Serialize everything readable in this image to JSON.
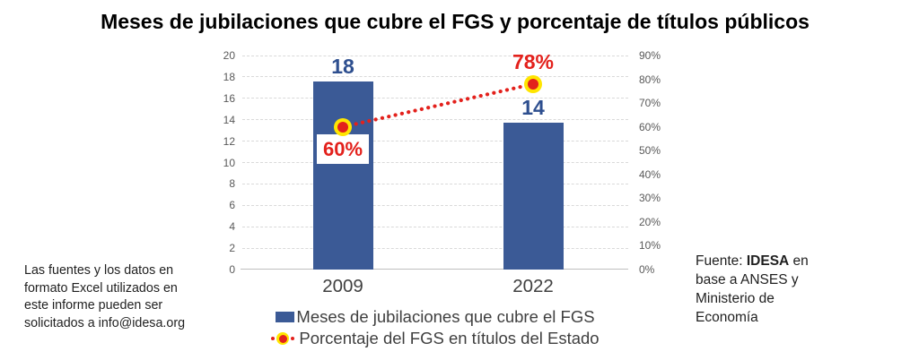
{
  "chart_data": {
    "type": "bar",
    "title": "Meses de jubilaciones que cubre el FGS y porcentaje de títulos públicos",
    "categories": [
      "2009",
      "2022"
    ],
    "series": [
      {
        "name": "Meses de jubilaciones que cubre el FGS",
        "type": "bar",
        "axis": "left",
        "values": [
          18,
          14
        ]
      },
      {
        "name": "Porcentaje del FGS en títulos del Estado",
        "type": "line-dotted",
        "axis": "right",
        "values_percent": [
          60,
          78
        ]
      }
    ],
    "bar_value_labels": [
      "18",
      "14"
    ],
    "pct_labels": [
      "60%",
      "78%"
    ],
    "bar_plotted_values": [
      17.6,
      13.7
    ],
    "left_axis": {
      "min": 0,
      "max": 20,
      "step": 2,
      "ticks": [
        "0",
        "2",
        "4",
        "6",
        "8",
        "10",
        "12",
        "14",
        "16",
        "18",
        "20"
      ]
    },
    "right_axis": {
      "min": 0,
      "max": 90,
      "step": 10,
      "ticks": [
        "0%",
        "10%",
        "20%",
        "30%",
        "40%",
        "50%",
        "60%",
        "70%",
        "80%",
        "90%"
      ]
    },
    "grid": "horizontal-dashed",
    "legend_position": "bottom"
  },
  "note": {
    "lines": [
      "Las fuentes y los datos en",
      "formato Excel utilizados en",
      "este informe pueden ser",
      "solicitados a info@idesa.org"
    ]
  },
  "source": {
    "prefix": "Fuente: ",
    "bold": "IDESA",
    "suffix": " en",
    "lines": [
      "base a ANSES y",
      "Ministerio de",
      "Economía"
    ]
  },
  "colors": {
    "bar": "#3B5A96",
    "bar-label": "#2E4F8F",
    "red": "#E3211C",
    "yellow": "#FFE500",
    "tick": "#595959",
    "grid": "#D9D9D9",
    "axis-line": "#BFBFBF",
    "legend-text": "#3F3F3F",
    "note-text": "#1F1F1F",
    "xlabel": "#404040",
    "title": "#000000"
  }
}
